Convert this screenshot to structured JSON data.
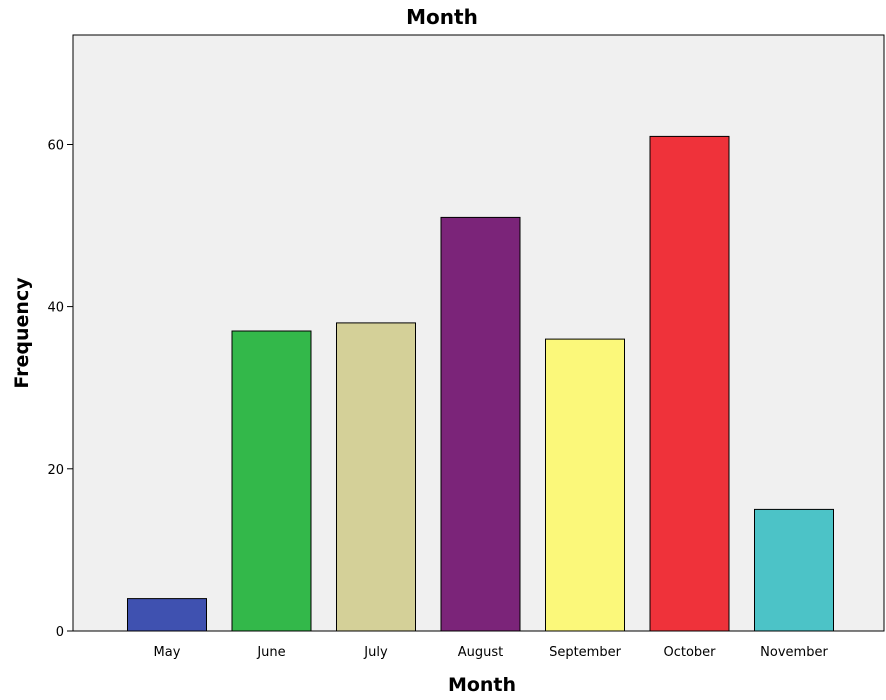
{
  "chart_data": {
    "type": "bar",
    "title": "Month",
    "xlabel": "Month",
    "ylabel": "Frequency",
    "categories": [
      "May",
      "June",
      "July",
      "August",
      "September",
      "October",
      "November"
    ],
    "values": [
      4,
      37,
      38,
      51,
      36,
      61,
      15
    ],
    "colors": [
      "#3f51b0",
      "#33b84a",
      "#d4d098",
      "#7b2479",
      "#fbf87a",
      "#ef323a",
      "#4cc3c7"
    ],
    "yticks": [
      0,
      20,
      40,
      60
    ],
    "ylim": [
      0,
      73.5
    ],
    "grid": false,
    "plot_background": "#f0f0f0"
  }
}
